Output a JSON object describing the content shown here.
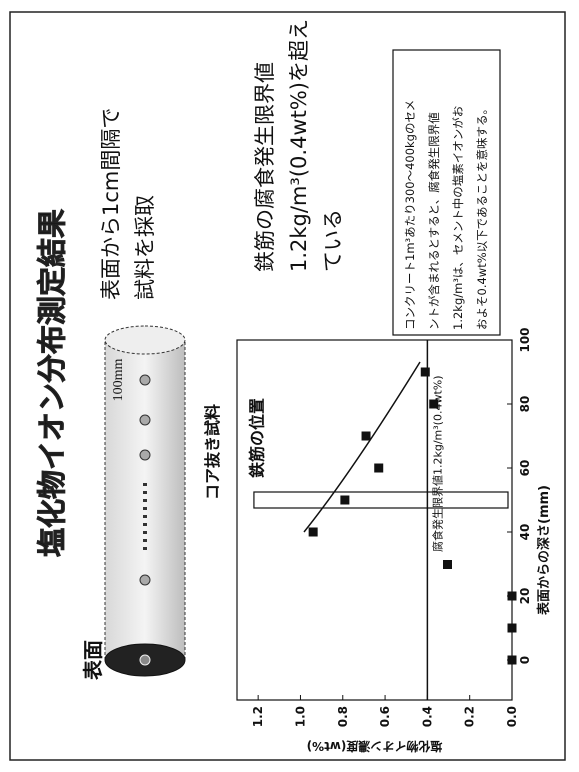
{
  "slide": {
    "title": "塩化物イオン分布測定結果",
    "sampling": [
      "表面から1cm間隔で",
      "試料を採取"
    ],
    "finding": [
      "鉄筋の腐食発生限界値",
      "1.2kg/m³(0.4wt%)を超え",
      "ている"
    ],
    "note": [
      "コンクリート1m³あたり300～400kgのセメ",
      "ントが含まれるとすると、腐食発生限界値",
      "1.2kg/m³は、セメント中の塩素イオンがお",
      "およそ0.4wt%以下であることを意味する。"
    ],
    "core_size": "100mm",
    "core_label": "コア抜き試料",
    "surface_label": "表面"
  },
  "chart_data": {
    "type": "scatter",
    "xlabel": "表面からの深さ(mm)",
    "ylabel": "塩化物イオン濃度(wt%)",
    "x": [
      0,
      10,
      20,
      40,
      50,
      60,
      70,
      80,
      90
    ],
    "values": [
      0.0,
      0.0,
      0.0,
      0.94,
      0.79,
      0.63,
      0.69,
      0.37,
      0.41
    ],
    "color": "#111111",
    "xlim": [
      -12.5,
      100
    ],
    "xticks": [
      0,
      20,
      40,
      60,
      80,
      100
    ],
    "ylim": [
      0,
      1.3
    ],
    "yticks": [
      {
        "value": 0,
        "label": "0.0"
      },
      {
        "value": 0.2,
        "label": "0.2"
      },
      {
        "value": 0.4,
        "label": "0.4"
      },
      {
        "value": 0.6,
        "label": "0.6"
      },
      {
        "value": 0.8,
        "label": "0.8"
      },
      {
        "value": 1,
        "label": "1.0"
      },
      {
        "value": 1.2,
        "label": "1.2"
      }
    ],
    "threshold": {
      "value": 0.4,
      "label": "腐食発生限界値1.2kg/m³(0.4wt%)"
    },
    "annotation": {
      "text": "鉄筋の位置",
      "x": 50
    }
  }
}
